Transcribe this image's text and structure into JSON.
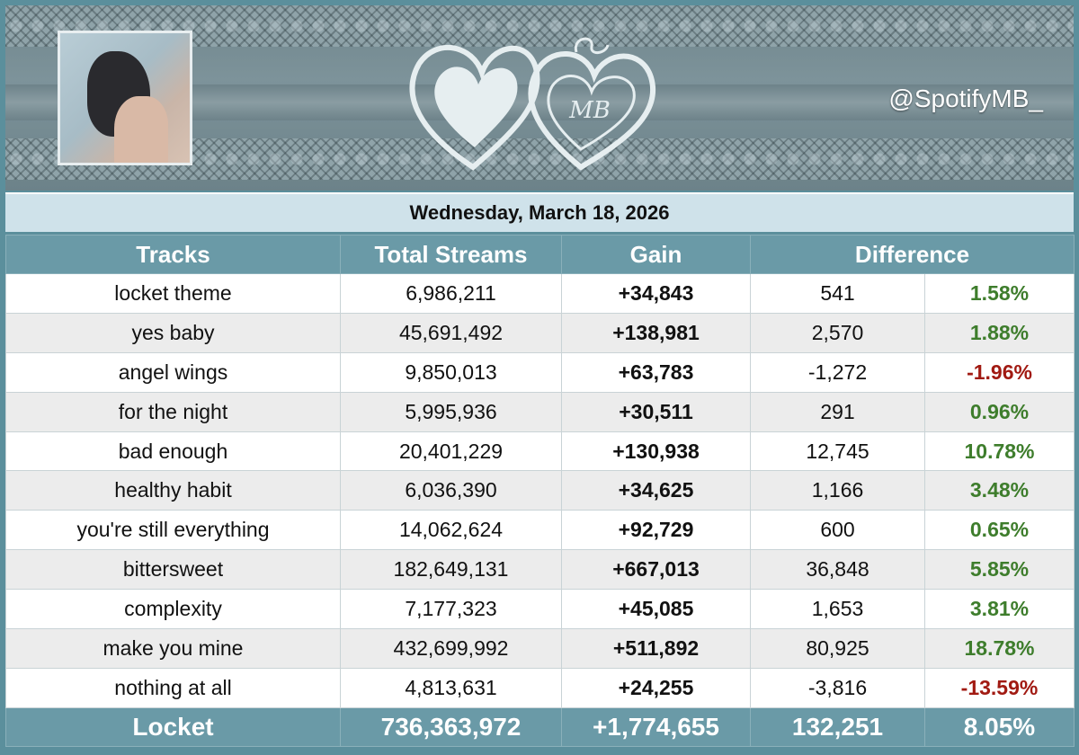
{
  "header": {
    "handle": "@SpotifyMB_",
    "logo_text": "MB"
  },
  "date": "Wednesday, March 18, 2026",
  "columns": [
    "Tracks",
    "Total Streams",
    "Gain",
    "Difference"
  ],
  "rows": [
    {
      "track": "locket theme",
      "total": "6,986,211",
      "gain": "+34,843",
      "diff": "541",
      "pct": "1.58%",
      "sign": "pos"
    },
    {
      "track": "yes baby",
      "total": "45,691,492",
      "gain": "+138,981",
      "diff": "2,570",
      "pct": "1.88%",
      "sign": "pos"
    },
    {
      "track": "angel wings",
      "total": "9,850,013",
      "gain": "+63,783",
      "diff": "-1,272",
      "pct": "-1.96%",
      "sign": "neg"
    },
    {
      "track": "for the night",
      "total": "5,995,936",
      "gain": "+30,511",
      "diff": "291",
      "pct": "0.96%",
      "sign": "pos"
    },
    {
      "track": "bad enough",
      "total": "20,401,229",
      "gain": "+130,938",
      "diff": "12,745",
      "pct": "10.78%",
      "sign": "pos"
    },
    {
      "track": "healthy habit",
      "total": "6,036,390",
      "gain": "+34,625",
      "diff": "1,166",
      "pct": "3.48%",
      "sign": "pos"
    },
    {
      "track": "you're still everything",
      "total": "14,062,624",
      "gain": "+92,729",
      "diff": "600",
      "pct": "0.65%",
      "sign": "pos"
    },
    {
      "track": "bittersweet",
      "total": "182,649,131",
      "gain": "+667,013",
      "diff": "36,848",
      "pct": "5.85%",
      "sign": "pos"
    },
    {
      "track": "complexity",
      "total": "7,177,323",
      "gain": "+45,085",
      "diff": "1,653",
      "pct": "3.81%",
      "sign": "pos"
    },
    {
      "track": "make you mine",
      "total": "432,699,992",
      "gain": "+511,892",
      "diff": "80,925",
      "pct": "18.78%",
      "sign": "pos"
    },
    {
      "track": "nothing at all",
      "total": "4,813,631",
      "gain": "+24,255",
      "diff": "-3,816",
      "pct": "-13.59%",
      "sign": "neg"
    }
  ],
  "total": {
    "track": "Locket",
    "total": "736,363,972",
    "gain": "+1,774,655",
    "diff": "132,251",
    "pct": "8.05%"
  },
  "colors": {
    "header": "#6a9aa7",
    "positive": "#3e7d2c",
    "negative": "#a11a12",
    "datebar": "#cfe2ea"
  }
}
